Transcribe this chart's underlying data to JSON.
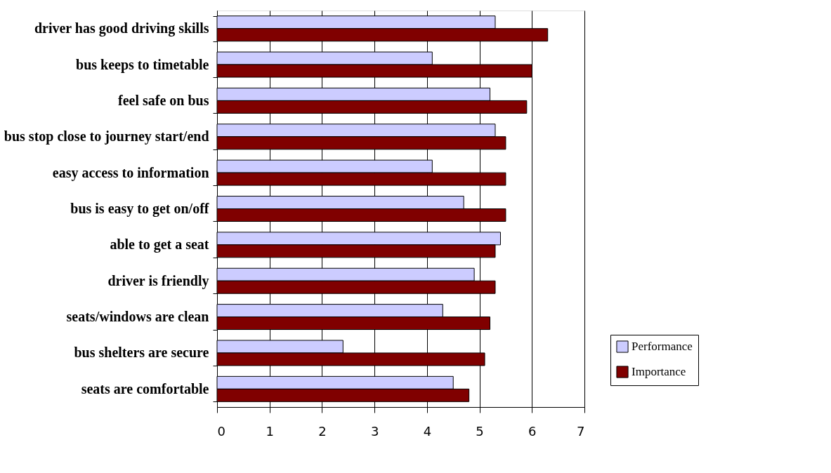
{
  "chart_data": {
    "type": "bar",
    "orientation": "horizontal",
    "categories": [
      "driver has good driving skills",
      "bus keeps to timetable",
      "feel safe on bus",
      "bus stop close to journey start/end",
      "easy access to information",
      "bus is easy to get on/off",
      "able to get a seat",
      "driver is friendly",
      "seats/windows are clean",
      "bus shelters are secure",
      "seats are comfortable"
    ],
    "series": [
      {
        "name": "Performance",
        "color": "#ccccff",
        "values": [
          5.3,
          4.1,
          5.2,
          5.3,
          4.1,
          4.7,
          5.4,
          4.9,
          4.3,
          2.4,
          4.5
        ]
      },
      {
        "name": "Importance",
        "color": "#800000",
        "values": [
          6.3,
          6.0,
          5.9,
          5.5,
          5.5,
          5.5,
          5.3,
          5.3,
          5.2,
          5.1,
          4.8
        ]
      }
    ],
    "xlim": [
      0,
      7
    ],
    "xticks": [
      0,
      1,
      2,
      3,
      4,
      5,
      6,
      7
    ],
    "grid": "x",
    "legend": "right"
  }
}
